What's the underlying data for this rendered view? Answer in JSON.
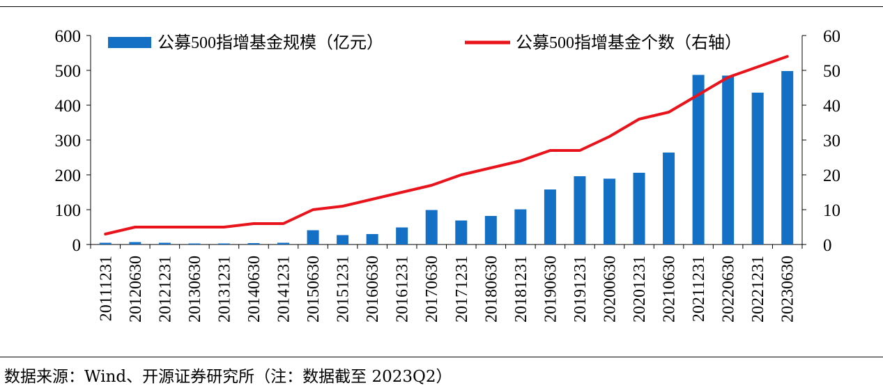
{
  "chart_data": {
    "type": "bar+line",
    "categories": [
      "20111231",
      "20120630",
      "20121231",
      "20130630",
      "20131231",
      "20140630",
      "20141231",
      "20150630",
      "20151231",
      "20160630",
      "20161231",
      "20170630",
      "20171231",
      "20180630",
      "20181231",
      "20190630",
      "20191231",
      "20200630",
      "20201231",
      "20210630",
      "20211231",
      "20220630",
      "20221231",
      "20230630"
    ],
    "series": [
      {
        "name": "公募500指增基金规模（亿元）",
        "type": "bar",
        "axis": "left",
        "color": "#1470c4",
        "values": [
          5,
          7,
          5,
          3,
          3,
          4,
          5,
          41,
          27,
          30,
          49,
          99,
          69,
          82,
          101,
          158,
          196,
          189,
          206,
          264,
          487,
          485,
          436,
          498
        ]
      },
      {
        "name": "公募500指增基金个数（右轴）",
        "type": "line",
        "axis": "right",
        "color": "#e8131b",
        "values": [
          3,
          5,
          5,
          5,
          5,
          6,
          6,
          10,
          11,
          13,
          15,
          17,
          20,
          22,
          24,
          27,
          27,
          31,
          36,
          38,
          43,
          48,
          51,
          54
        ]
      }
    ],
    "y_left": {
      "min": 0,
      "max": 600,
      "ticks": [
        "0",
        "100",
        "200",
        "300",
        "400",
        "500",
        "600"
      ]
    },
    "y_right": {
      "min": 0,
      "max": 60,
      "ticks": [
        "0",
        "10",
        "20",
        "30",
        "40",
        "50",
        "60"
      ]
    },
    "grid": false,
    "legend_position": "top"
  },
  "source_note": "数据来源：Wind、开源证券研究所（注：数据截至 2023Q2）"
}
